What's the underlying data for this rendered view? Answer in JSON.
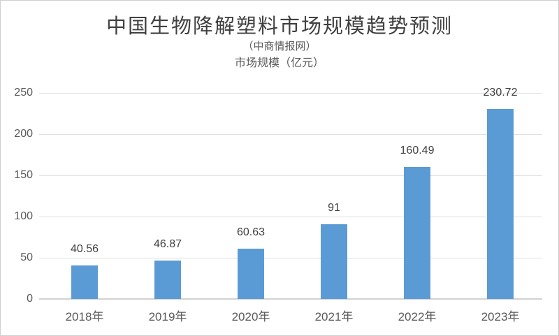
{
  "header": {
    "title": "中国生物降解塑料市场规模趋势预测",
    "subtitle": "（中商情报网）",
    "axis_title": "市场规模（亿元）"
  },
  "chart_data": {
    "type": "bar",
    "title": "中国生物降解塑料市场规模趋势预测",
    "subtitle": "（中商情报网）",
    "ylabel": "市场规模（亿元）",
    "xlabel": "",
    "categories": [
      "2018年",
      "2019年",
      "2020年",
      "2021年",
      "2022年",
      "2023年"
    ],
    "values": [
      40.56,
      46.87,
      60.63,
      91,
      160.49,
      230.72
    ],
    "data_labels": [
      "40.56",
      "46.87",
      "60.63",
      "91",
      "160.49",
      "230.72"
    ],
    "ylim": [
      0,
      250
    ],
    "yticks": [
      0,
      50,
      100,
      150,
      200,
      250
    ],
    "grid": true,
    "legend_position": "none",
    "bar_color": "#5B9BD5"
  },
  "style": {
    "grid_color": "#E0E0E0",
    "baseline_color": "#D2D2D2",
    "axis_text_color": "#595959",
    "data_label_color": "#404040",
    "title_color": "#404040",
    "canvas_border_color": "#D0CECE"
  }
}
